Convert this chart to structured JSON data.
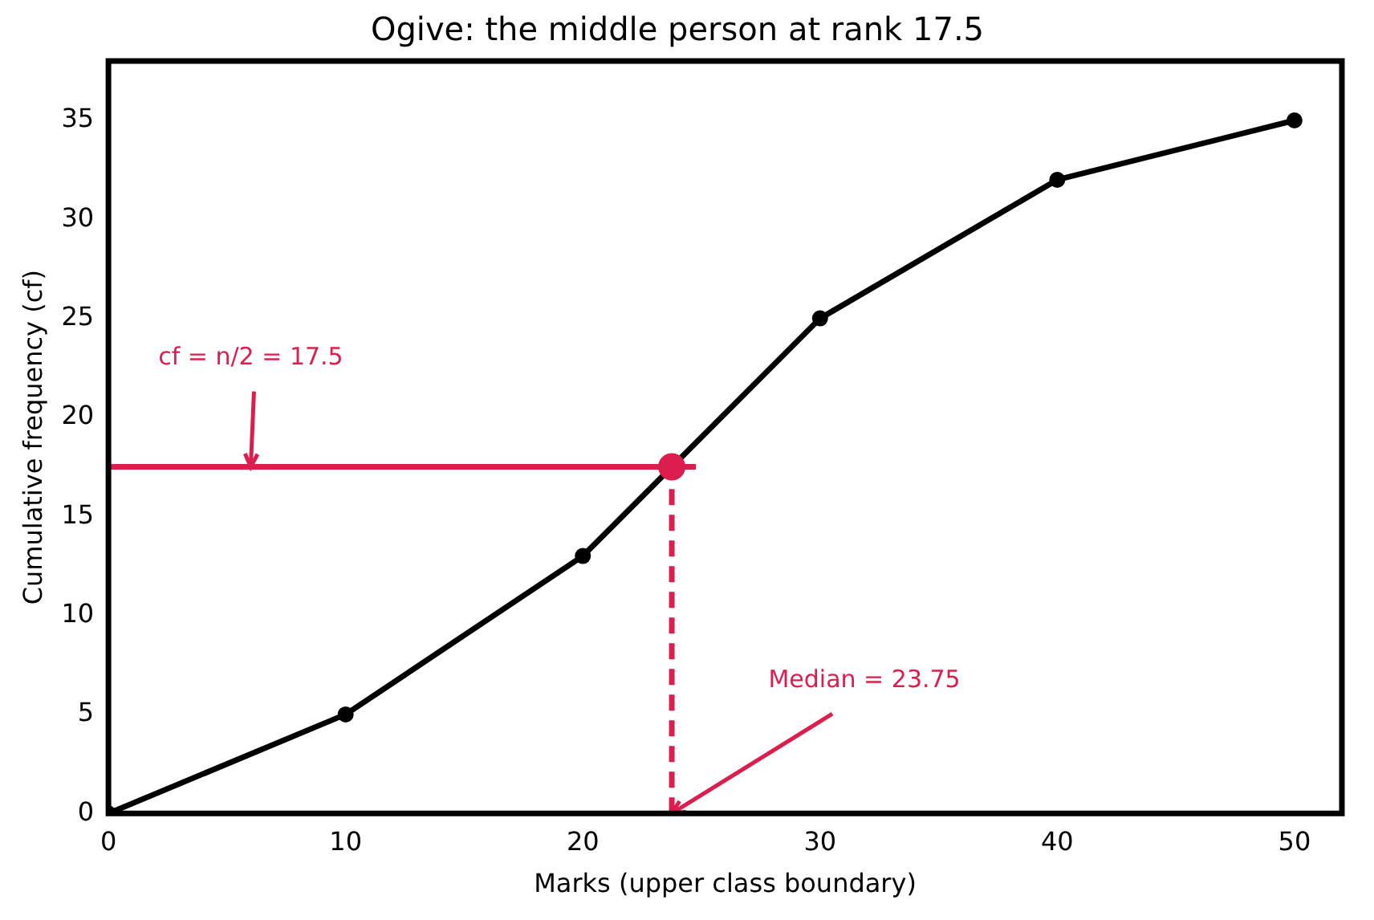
{
  "chart_data": {
    "type": "line",
    "title": "Ogive: the middle person at rank 17.5",
    "xlabel": "Marks (upper class boundary)",
    "ylabel": "Cumulative frequency (cf)",
    "x": [
      0,
      10,
      20,
      30,
      40,
      50
    ],
    "series": [
      {
        "color": "#000000",
        "values": [
          0,
          5,
          13,
          25,
          32,
          35
        ]
      },
      {
        "type": "scatter",
        "color": "#dc1e4f",
        "x": [
          23.75
        ],
        "values": [
          17.5
        ]
      }
    ],
    "xlim": [
      0,
      52
    ],
    "ylim": [
      0,
      38
    ],
    "xticks": [
      0,
      10,
      20,
      30,
      40,
      50
    ],
    "yticks": [
      0,
      5,
      10,
      15,
      20,
      25,
      30,
      35
    ],
    "grid": false,
    "legend": false,
    "marker": "circle",
    "line_style": "solid",
    "ref_lines": [
      {
        "axis": "y",
        "value": 17.5,
        "color": "#dc1e4f",
        "line_style": "solid"
      },
      {
        "axis": "x",
        "value": 23.75,
        "color": "#dc1e4f",
        "line_style": "dashed"
      }
    ],
    "annotations": [
      {
        "text": "cf = n/2 = 17.5",
        "x": 6,
        "y": 17.5
      },
      {
        "text": "Median = 23.75",
        "x": 23.75,
        "y": 0
      }
    ]
  }
}
